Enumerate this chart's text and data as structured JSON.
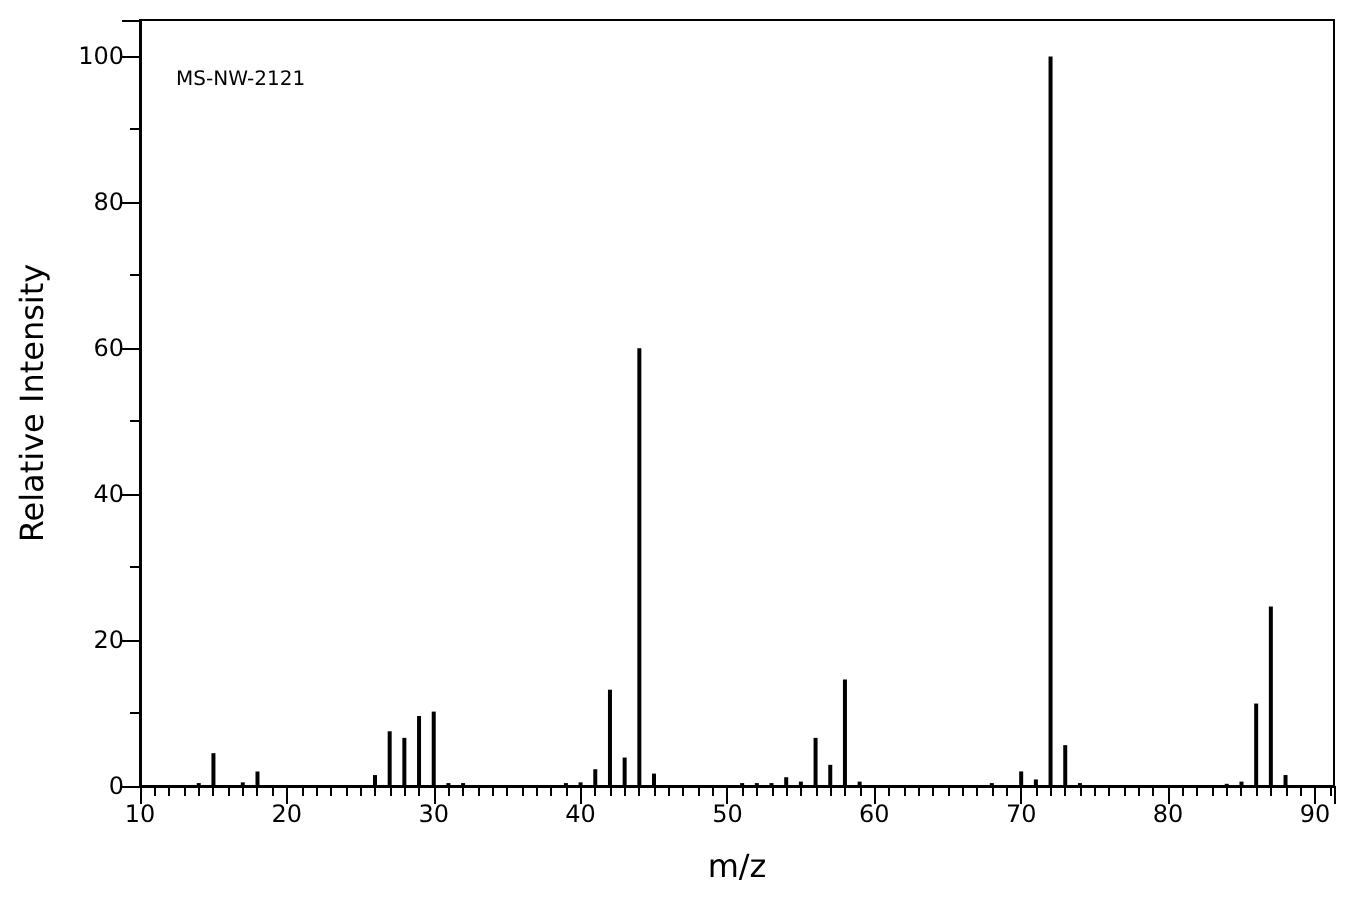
{
  "chart_data": {
    "type": "bar",
    "xlabel": "m/z",
    "ylabel": "Relative Intensity",
    "annotations": [
      "MS-NW-2121"
    ],
    "x": [
      14,
      15,
      17,
      18,
      26,
      27,
      28,
      29,
      30,
      31,
      32,
      39,
      40,
      41,
      42,
      43,
      44,
      45,
      51,
      52,
      53,
      54,
      55,
      56,
      57,
      58,
      59,
      68,
      70,
      71,
      72,
      73,
      74,
      84,
      85,
      86,
      87,
      88
    ],
    "values": [
      0.4,
      4.5,
      0.5,
      2,
      1.5,
      7.5,
      6.6,
      9.6,
      10.2,
      0.4,
      0.4,
      0.4,
      0.5,
      2.3,
      13.2,
      3.9,
      60,
      1.7,
      0.4,
      0.4,
      0.4,
      1.2,
      0.6,
      6.6,
      2.9,
      14.6,
      0.6,
      0.4,
      2,
      0.9,
      100,
      5.6,
      0.4,
      0.3,
      0.6,
      11.3,
      24.6,
      1.5
    ],
    "color": "#000000",
    "xlim": [
      10,
      91.3
    ],
    "xticks": [
      10,
      20,
      30,
      40,
      50,
      60,
      70,
      80,
      90
    ],
    "ylim": [
      0,
      105
    ],
    "yticks": [
      0,
      20,
      40,
      60,
      80,
      100
    ],
    "grid": false
  }
}
